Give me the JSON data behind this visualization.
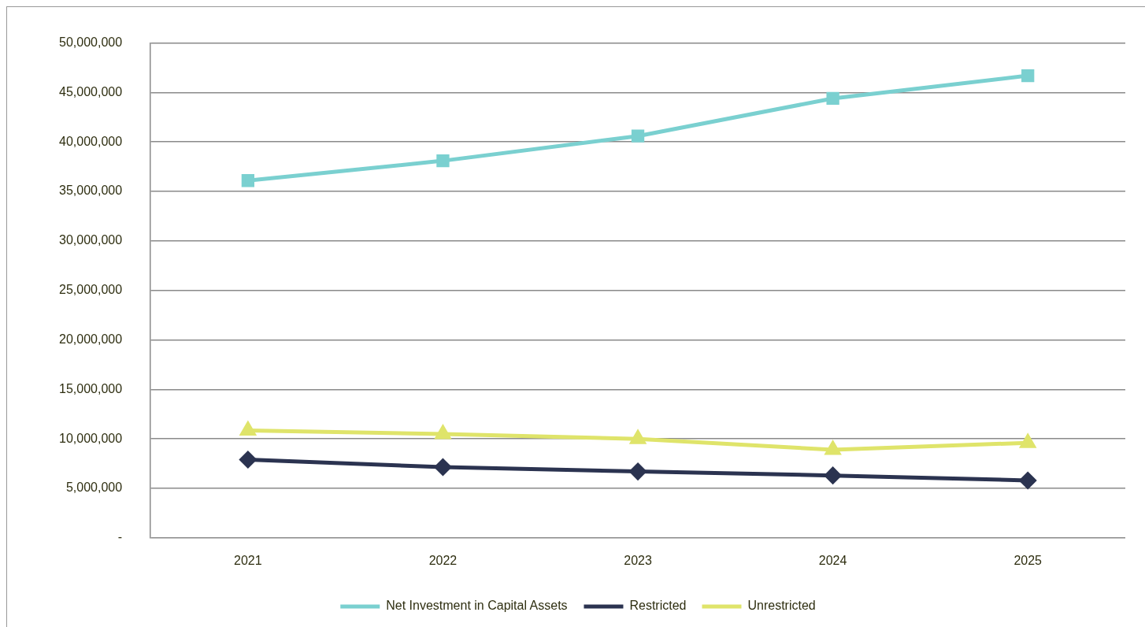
{
  "chart_data": {
    "type": "line",
    "categories": [
      "2021",
      "2022",
      "2023",
      "2024",
      "2025"
    ],
    "series": [
      {
        "name": "Net Investment in Capital Assets",
        "color": "#7ad0d0",
        "marker": "square",
        "values": [
          36100000,
          38100000,
          40600000,
          44400000,
          46700000
        ]
      },
      {
        "name": "Restricted",
        "color": "#2b3350",
        "marker": "diamond",
        "values": [
          7900000,
          7150000,
          6700000,
          6300000,
          5800000
        ]
      },
      {
        "name": "Unrestricted",
        "color": "#dfe46a",
        "marker": "triangle",
        "values": [
          10850000,
          10500000,
          10000000,
          8900000,
          9600000
        ]
      }
    ],
    "ylim": [
      0,
      50000000
    ],
    "yticks": [
      {
        "value": 0,
        "label": "-"
      },
      {
        "value": 5000000,
        "label": "5,000,000"
      },
      {
        "value": 10000000,
        "label": "10,000,000"
      },
      {
        "value": 15000000,
        "label": "15,000,000"
      },
      {
        "value": 20000000,
        "label": "20,000,000"
      },
      {
        "value": 25000000,
        "label": "25,000,000"
      },
      {
        "value": 30000000,
        "label": "30,000,000"
      },
      {
        "value": 35000000,
        "label": "35,000,000"
      },
      {
        "value": 40000000,
        "label": "40,000,000"
      },
      {
        "value": 45000000,
        "label": "45,000,000"
      },
      {
        "value": 50000000,
        "label": "50,000,000"
      }
    ],
    "grid": "y",
    "legend": "bottom",
    "line_style": "solid"
  }
}
